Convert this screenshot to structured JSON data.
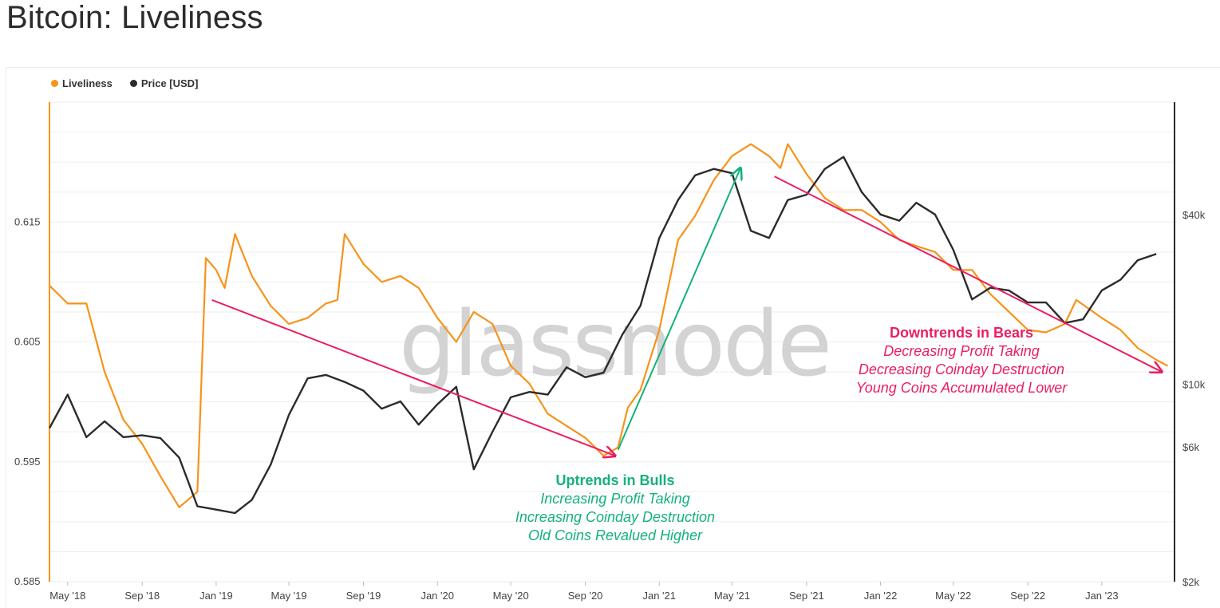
{
  "title": "Bitcoin: Liveliness",
  "legend": {
    "liveliness": "Liveliness",
    "price": "Price [USD]"
  },
  "watermark": "glassnode",
  "colors": {
    "liveliness": "#f7931a",
    "price": "#2b2b2b",
    "uptrend": "#13b27a",
    "downtrend": "#ea1f5f",
    "grid": "#eeeeee"
  },
  "chart_data": {
    "type": "line",
    "title": "Bitcoin: Liveliness",
    "x_ticks": [
      "May '18",
      "Sep '18",
      "Jan '19",
      "May '19",
      "Sep '19",
      "Jan '20",
      "May '20",
      "Sep '20",
      "Jan '21",
      "May '21",
      "Sep '21",
      "Jan '22",
      "May '22",
      "Sep '22",
      "Jan '23"
    ],
    "x_range": [
      "2018-04-01",
      "2023-05-01"
    ],
    "y_left": {
      "ticks": [
        "0.585",
        "0.595",
        "0.605",
        "0.615"
      ],
      "range": [
        0.585,
        0.625
      ]
    },
    "y_right": {
      "ticks": [
        "$2k",
        "$6k",
        "$10k",
        "$40k"
      ],
      "scale": "log",
      "range": [
        2000,
        100000
      ]
    },
    "grid": true,
    "legend_position": "top-left",
    "series": [
      {
        "name": "Liveliness",
        "axis": "left",
        "points": [
          [
            "2018-04-01",
            0.6097
          ],
          [
            "2018-05-01",
            0.6082
          ],
          [
            "2018-06-01",
            0.6082
          ],
          [
            "2018-07-01",
            0.6025
          ],
          [
            "2018-08-01",
            0.5985
          ],
          [
            "2018-09-01",
            0.5965
          ],
          [
            "2018-10-01",
            0.5938
          ],
          [
            "2018-11-01",
            0.5912
          ],
          [
            "2018-12-01",
            0.5925
          ],
          [
            "2018-12-15",
            0.612
          ],
          [
            "2019-01-01",
            0.611
          ],
          [
            "2019-01-15",
            0.6095
          ],
          [
            "2019-02-01",
            0.614
          ],
          [
            "2019-03-01",
            0.6105
          ],
          [
            "2019-04-01",
            0.608
          ],
          [
            "2019-05-01",
            0.6065
          ],
          [
            "2019-06-01",
            0.607
          ],
          [
            "2019-07-01",
            0.6082
          ],
          [
            "2019-07-20",
            0.6085
          ],
          [
            "2019-08-01",
            0.614
          ],
          [
            "2019-09-01",
            0.6115
          ],
          [
            "2019-10-01",
            0.61
          ],
          [
            "2019-11-01",
            0.6105
          ],
          [
            "2019-12-01",
            0.6095
          ],
          [
            "2020-01-01",
            0.607
          ],
          [
            "2020-02-01",
            0.605
          ],
          [
            "2020-03-01",
            0.6075
          ],
          [
            "2020-04-01",
            0.6065
          ],
          [
            "2020-05-01",
            0.603
          ],
          [
            "2020-06-01",
            0.6015
          ],
          [
            "2020-07-01",
            0.599
          ],
          [
            "2020-08-01",
            0.598
          ],
          [
            "2020-09-01",
            0.597
          ],
          [
            "2020-10-01",
            0.5955
          ],
          [
            "2020-10-25",
            0.5962
          ],
          [
            "2020-11-10",
            0.5995
          ],
          [
            "2020-12-01",
            0.601
          ],
          [
            "2021-01-01",
            0.606
          ],
          [
            "2021-02-01",
            0.6135
          ],
          [
            "2021-03-01",
            0.6155
          ],
          [
            "2021-04-01",
            0.6185
          ],
          [
            "2021-05-01",
            0.6205
          ],
          [
            "2021-06-01",
            0.6215
          ],
          [
            "2021-07-01",
            0.6205
          ],
          [
            "2021-07-20",
            0.6195
          ],
          [
            "2021-08-01",
            0.6215
          ],
          [
            "2021-09-01",
            0.619
          ],
          [
            "2021-10-01",
            0.617
          ],
          [
            "2021-11-01",
            0.616
          ],
          [
            "2021-12-01",
            0.616
          ],
          [
            "2022-01-01",
            0.615
          ],
          [
            "2022-02-01",
            0.6135
          ],
          [
            "2022-03-01",
            0.613
          ],
          [
            "2022-04-01",
            0.6125
          ],
          [
            "2022-05-01",
            0.611
          ],
          [
            "2022-06-01",
            0.611
          ],
          [
            "2022-07-01",
            0.609
          ],
          [
            "2022-08-01",
            0.6075
          ],
          [
            "2022-09-01",
            0.606
          ],
          [
            "2022-10-01",
            0.6058
          ],
          [
            "2022-11-01",
            0.6065
          ],
          [
            "2022-11-20",
            0.6085
          ],
          [
            "2023-01-01",
            0.607
          ],
          [
            "2023-02-01",
            0.606
          ],
          [
            "2023-03-01",
            0.6045
          ],
          [
            "2023-04-01",
            0.6035
          ],
          [
            "2023-04-20",
            0.603
          ]
        ]
      },
      {
        "name": "Price [USD]",
        "axis": "right",
        "points": [
          [
            "2018-04-01",
            7000
          ],
          [
            "2018-05-01",
            9200
          ],
          [
            "2018-06-01",
            6500
          ],
          [
            "2018-07-01",
            7400
          ],
          [
            "2018-08-01",
            6500
          ],
          [
            "2018-09-01",
            6600
          ],
          [
            "2018-10-01",
            6450
          ],
          [
            "2018-11-01",
            5500
          ],
          [
            "2018-12-01",
            3700
          ],
          [
            "2019-01-01",
            3600
          ],
          [
            "2019-02-01",
            3500
          ],
          [
            "2019-03-01",
            3900
          ],
          [
            "2019-04-01",
            5200
          ],
          [
            "2019-05-01",
            7800
          ],
          [
            "2019-06-01",
            10500
          ],
          [
            "2019-07-01",
            10800
          ],
          [
            "2019-08-01",
            10200
          ],
          [
            "2019-09-01",
            9500
          ],
          [
            "2019-10-01",
            8200
          ],
          [
            "2019-11-01",
            8700
          ],
          [
            "2019-12-01",
            7200
          ],
          [
            "2020-01-01",
            8500
          ],
          [
            "2020-02-01",
            9800
          ],
          [
            "2020-03-01",
            5000
          ],
          [
            "2020-04-01",
            6800
          ],
          [
            "2020-05-01",
            9000
          ],
          [
            "2020-06-01",
            9400
          ],
          [
            "2020-07-01",
            9200
          ],
          [
            "2020-08-01",
            11500
          ],
          [
            "2020-09-01",
            10600
          ],
          [
            "2020-10-01",
            11000
          ],
          [
            "2020-11-01",
            15000
          ],
          [
            "2020-12-01",
            19000
          ],
          [
            "2021-01-01",
            33000
          ],
          [
            "2021-02-01",
            45000
          ],
          [
            "2021-03-01",
            55000
          ],
          [
            "2021-04-01",
            58000
          ],
          [
            "2021-05-01",
            56000
          ],
          [
            "2021-06-01",
            35000
          ],
          [
            "2021-07-01",
            33000
          ],
          [
            "2021-08-01",
            45000
          ],
          [
            "2021-09-01",
            47000
          ],
          [
            "2021-10-01",
            58000
          ],
          [
            "2021-11-01",
            64000
          ],
          [
            "2021-12-01",
            48000
          ],
          [
            "2022-01-01",
            40000
          ],
          [
            "2022-02-01",
            38000
          ],
          [
            "2022-03-01",
            44000
          ],
          [
            "2022-04-01",
            40000
          ],
          [
            "2022-05-01",
            30000
          ],
          [
            "2022-06-01",
            20000
          ],
          [
            "2022-07-01",
            22000
          ],
          [
            "2022-08-01",
            21500
          ],
          [
            "2022-09-01",
            19500
          ],
          [
            "2022-10-01",
            19500
          ],
          [
            "2022-11-01",
            16500
          ],
          [
            "2022-12-01",
            17000
          ],
          [
            "2023-01-01",
            21500
          ],
          [
            "2023-02-01",
            23500
          ],
          [
            "2023-03-01",
            27500
          ],
          [
            "2023-04-01",
            29000
          ]
        ]
      }
    ],
    "annotations": [
      {
        "id": "uptrend",
        "title": "Uptrends in Bulls",
        "lines": [
          "Increasing Profit Taking",
          "Increasing Coinday Destruction",
          "Old Coins Revalued Higher"
        ],
        "arrow": {
          "from": [
            "2020-10-25",
            0.596
          ],
          "to": [
            "2021-05-15",
            0.6195
          ]
        }
      },
      {
        "id": "downtrend",
        "title": "Downtrends in Bears",
        "lines": [
          "Decreasing Profit Taking",
          "Decreasing Coinday Destruction",
          "Young Coins Accumulated Lower"
        ],
        "arrow": {
          "from": [
            "2021-07-10",
            0.6188
          ],
          "to": [
            "2023-04-10",
            0.6025
          ]
        }
      },
      {
        "id": "bear-2019",
        "arrow": {
          "from": [
            "2018-12-25",
            0.6085
          ],
          "to": [
            "2020-10-20",
            0.5955
          ]
        }
      }
    ]
  }
}
